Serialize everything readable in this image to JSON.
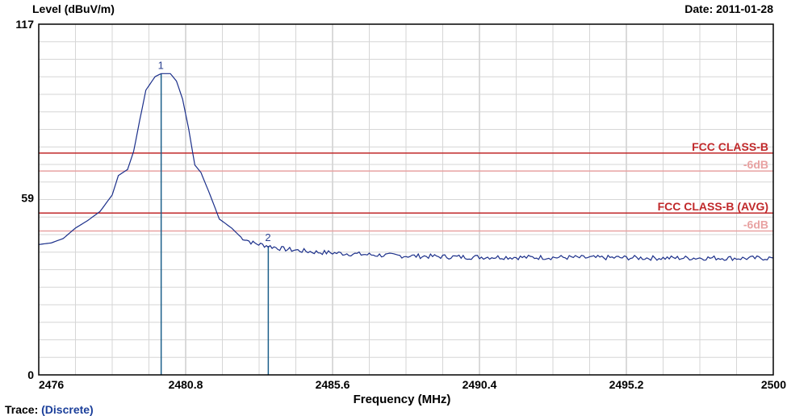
{
  "header": {
    "level_label": "Level (dBuV/m)",
    "date_label": "Date: 2011-01-28"
  },
  "footer": {
    "trace_label": "Trace:",
    "trace_value": "(Discrete)"
  },
  "colors": {
    "trace": "#1b2f8a",
    "limit": "#c0282a",
    "limit_6db": "#e8a2a2",
    "marker": "#1b5f8a",
    "grid": "#c8c8c8"
  },
  "chart_data": {
    "type": "line",
    "xlabel": "Frequency (MHz)",
    "ylabel": "Level (dBuV/m)",
    "xlim": [
      2476,
      2500
    ],
    "ylim": [
      0,
      117
    ],
    "x_ticks": [
      "2476",
      "2480.8",
      "2485.6",
      "2490.4",
      "2495.2",
      "2500"
    ],
    "y_ticks": [
      "117",
      "59",
      "0"
    ],
    "limits": [
      {
        "label": "FCC CLASS-B",
        "value": 74
      },
      {
        "label": "-6dB",
        "value": 68
      },
      {
        "label": "FCC CLASS-B (AVG)",
        "value": 54
      },
      {
        "label": "-6dB",
        "value": 48
      }
    ],
    "markers": [
      {
        "label": "1",
        "x": 2480.0,
        "y": 100.5
      },
      {
        "label": "2",
        "x": 2483.5,
        "y": 43.0
      }
    ],
    "series": [
      {
        "points": [
          [
            2476.0,
            43.5
          ],
          [
            2476.4,
            44.0
          ],
          [
            2476.8,
            45.5
          ],
          [
            2477.2,
            49.0
          ],
          [
            2477.6,
            51.5
          ],
          [
            2478.0,
            54.5
          ],
          [
            2478.4,
            60.0
          ],
          [
            2478.6,
            66.5
          ],
          [
            2478.9,
            68.5
          ],
          [
            2479.1,
            74.5
          ],
          [
            2479.3,
            85.0
          ],
          [
            2479.5,
            95.0
          ],
          [
            2479.8,
            99.5
          ],
          [
            2480.0,
            100.5
          ],
          [
            2480.3,
            100.5
          ],
          [
            2480.5,
            98.0
          ],
          [
            2480.7,
            92.0
          ],
          [
            2480.9,
            82.0
          ],
          [
            2481.1,
            70.0
          ],
          [
            2481.3,
            67.5
          ],
          [
            2481.6,
            60.0
          ],
          [
            2481.9,
            52.0
          ],
          [
            2482.3,
            49.0
          ],
          [
            2482.6,
            46.0
          ],
          [
            2483.0,
            44.0
          ],
          [
            2483.5,
            43.0
          ],
          [
            2484.0,
            42.0
          ],
          [
            2485.0,
            41.0
          ],
          [
            2486.0,
            40.5
          ],
          [
            2487.0,
            40.0
          ],
          [
            2488.0,
            39.7
          ],
          [
            2489.0,
            39.5
          ],
          [
            2490.0,
            39.3
          ],
          [
            2491.0,
            39.3
          ],
          [
            2492.0,
            39.2
          ],
          [
            2493.0,
            39.2
          ],
          [
            2494.0,
            39.1
          ],
          [
            2495.0,
            39.1
          ],
          [
            2496.0,
            39.0
          ],
          [
            2497.0,
            39.0
          ],
          [
            2498.0,
            39.0
          ],
          [
            2499.0,
            38.9
          ],
          [
            2500.0,
            39.0
          ]
        ]
      }
    ]
  }
}
